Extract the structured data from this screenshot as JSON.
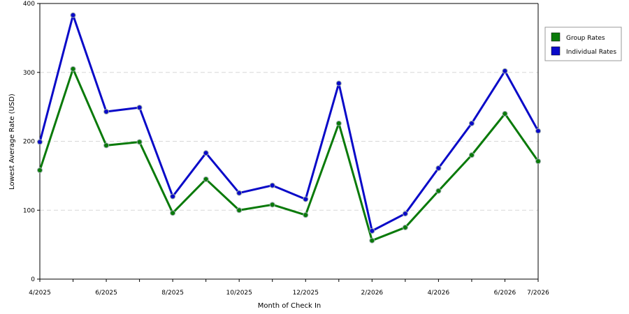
{
  "chart_data": {
    "type": "line",
    "title": "",
    "xlabel": "Month of Check In",
    "ylabel": "Lowest Average Rate (USD)",
    "ylim": [
      0,
      400
    ],
    "yticks": [
      0,
      100,
      200,
      300,
      400
    ],
    "grid": "horizontal dashed",
    "legend_position": "top-right",
    "x": [
      "4/2025",
      "5/2025",
      "6/2025",
      "7/2025",
      "8/2025",
      "9/2025",
      "10/2025",
      "11/2025",
      "12/2025",
      "1/2026",
      "2/2026",
      "3/2026",
      "4/2026",
      "5/2026",
      "6/2026",
      "7/2026"
    ],
    "x_tick_labels": [
      "4/2025",
      "",
      "6/2025",
      "",
      "8/2025",
      "",
      "10/2025",
      "",
      "12/2025",
      "",
      "2/2026",
      "",
      "4/2026",
      "",
      "6/2026",
      "7/2026"
    ],
    "series": [
      {
        "name": "Group Rates",
        "color": "#0a7a0a",
        "values": [
          158,
          305,
          194,
          199,
          96,
          145,
          100,
          108,
          93,
          226,
          56,
          75,
          128,
          180,
          240,
          171
        ]
      },
      {
        "name": "Individual Rates",
        "color": "#0a0ac8",
        "values": [
          199,
          383,
          243,
          249,
          120,
          183,
          125,
          136,
          116,
          284,
          70,
          95,
          161,
          226,
          302,
          215
        ]
      }
    ]
  }
}
